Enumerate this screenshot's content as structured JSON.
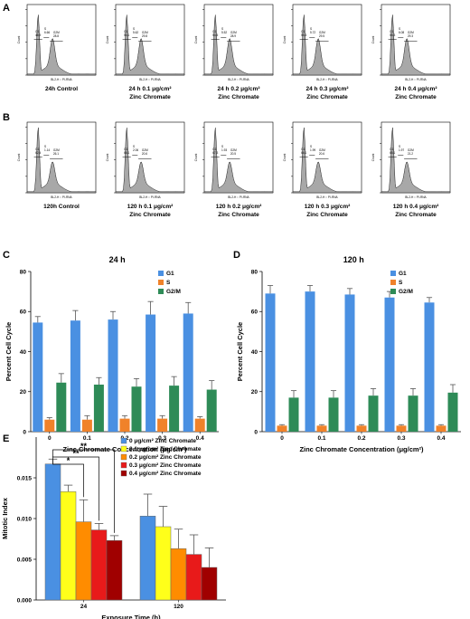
{
  "panels": {
    "a": "A",
    "b": "B",
    "c": "C",
    "d": "D",
    "e": "E"
  },
  "histograms": {
    "ylabel": "Count",
    "xlabel": "BL2-H :: PI-RNA",
    "row_a": [
      {
        "label1": "24h Control",
        "label2": "",
        "g1": "48.9",
        "s": "6.66",
        "g2m": "28.8"
      },
      {
        "label1": "24 h 0.1 μg/cm²",
        "label2": "Zinc Chromate",
        "g1": "54.1",
        "s": "5.62",
        "g2m": "29.8"
      },
      {
        "label1": "24 h 0.2 μg/cm²",
        "label2": "Zinc Chromate",
        "g1": "54.5",
        "s": "5.52",
        "g2m": "28.9"
      },
      {
        "label1": "24 h 0.3 μg/cm²",
        "label2": "Zinc Chromate",
        "g1": "55.3",
        "s": "5.72",
        "g2m": "29.5"
      },
      {
        "label1": "24 h 0.4 μg/cm²",
        "label2": "Zinc Chromate",
        "g1": "55.3",
        "s": "6.08",
        "g2m": "29.3"
      }
    ],
    "row_b": [
      {
        "label1": "120h Control",
        "label2": "",
        "g1": "62.4",
        "s": "1.14",
        "g2m": "26.1"
      },
      {
        "label1": "120 h 0.1 μg/cm²",
        "label2": "Zinc Chromate",
        "g1": "66.1",
        "s": "2.06",
        "g2m": "20.6"
      },
      {
        "label1": "120 h 0.2 μg/cm²",
        "label2": "Zinc Chromate",
        "g1": "67.3",
        "s": "1.93",
        "g2m": "20.5"
      },
      {
        "label1": "120 h 0.3 μg/cm²",
        "label2": "Zinc Chromate",
        "g1": "66.1",
        "s": "1.99",
        "g2m": "20.6"
      },
      {
        "label1": "120 h 0.4 μg/cm²",
        "label2": "Zinc Chromate",
        "g1": "65.1",
        "s": "1.97",
        "g2m": "21.2"
      }
    ],
    "gate_labels": {
      "g1": "G1",
      "s": "S",
      "g2m": "G2M"
    }
  },
  "colors": {
    "g1": "#4a90e2",
    "s": "#f0822a",
    "g2m": "#2e8b57",
    "e0": "#4a90e2",
    "e1": "#ffff1a",
    "e2": "#ff8c00",
    "e3": "#e81a1a",
    "e4": "#a00000"
  },
  "chart_data": [
    {
      "type": "bar",
      "title": "24 h",
      "xlabel": "Zinc Chromate Concentration (μg/cm²)",
      "ylabel": "Percent Cell Cycle",
      "categories": [
        "0",
        "0.1",
        "0.2",
        "0.3",
        "0.4"
      ],
      "ylim": [
        0,
        80
      ],
      "yticks": [
        "0",
        "20",
        "40",
        "60",
        "80"
      ],
      "legend": "top-right",
      "series": [
        {
          "name": "G1",
          "values": [
            54.5,
            55.5,
            56,
            58.5,
            59
          ],
          "err": [
            3,
            5,
            4,
            6.5,
            5.5
          ]
        },
        {
          "name": "S",
          "values": [
            6,
            6,
            6.5,
            6.5,
            6.5
          ],
          "err": [
            1,
            2,
            1.5,
            1.5,
            1
          ]
        },
        {
          "name": "G2/M",
          "values": [
            24.5,
            23.5,
            22.5,
            23,
            21
          ],
          "err": [
            4.5,
            3.5,
            4,
            4.5,
            4.5
          ]
        }
      ]
    },
    {
      "type": "bar",
      "title": "120 h",
      "xlabel": "Zinc Chromate Concentration (μg/cm²)",
      "ylabel": "Percent Cell Cycle",
      "categories": [
        "0",
        "0.1",
        "0.2",
        "0.3",
        "0.4"
      ],
      "ylim": [
        0,
        80
      ],
      "yticks": [
        "0",
        "20",
        "40",
        "60",
        "80"
      ],
      "legend": "top-right",
      "series": [
        {
          "name": "G1",
          "values": [
            69,
            70,
            68.5,
            67,
            64.5
          ],
          "err": [
            4,
            3,
            3,
            3,
            2.5
          ]
        },
        {
          "name": "S",
          "values": [
            3,
            3,
            3,
            3,
            3
          ],
          "err": [
            0.5,
            0.5,
            0.5,
            0.5,
            0.5
          ]
        },
        {
          "name": "G2/M",
          "values": [
            17,
            17,
            18,
            18,
            19.5
          ],
          "err": [
            3.5,
            3.5,
            3.5,
            3.5,
            4
          ]
        }
      ]
    },
    {
      "type": "bar",
      "title": "",
      "xlabel": "Exposure Time (h)",
      "ylabel": "Mitotic Index",
      "categories": [
        "24",
        "120"
      ],
      "ylim": [
        0,
        0.02
      ],
      "yticks": [
        "0.000",
        "0.005",
        "0.010",
        "0.015"
      ],
      "legend": "top-right",
      "series": [
        {
          "name": "0 μg/cm² Zinc Chromate",
          "values": [
            0.0167,
            0.0103
          ],
          "err": [
            0.0006,
            0.0027
          ]
        },
        {
          "name": "0.1 μg/cm² Zinc Chromate",
          "values": [
            0.0133,
            0.009
          ],
          "err": [
            0.0008,
            0.0025
          ]
        },
        {
          "name": "0.2 μg/cm² Zinc Chromate",
          "values": [
            0.0096,
            0.0063
          ],
          "err": [
            0.0027,
            0.0024
          ]
        },
        {
          "name": "0.3 μg/cm² Zinc Chromate",
          "values": [
            0.0086,
            0.0056
          ],
          "err": [
            0.0008,
            0.0024
          ]
        },
        {
          "name": "0.4 μg/cm² Zinc Chromate",
          "values": [
            0.0073,
            0.004
          ],
          "err": [
            0.0006,
            0.0024
          ]
        }
      ],
      "significance": [
        "**",
        "**",
        "*"
      ]
    }
  ]
}
